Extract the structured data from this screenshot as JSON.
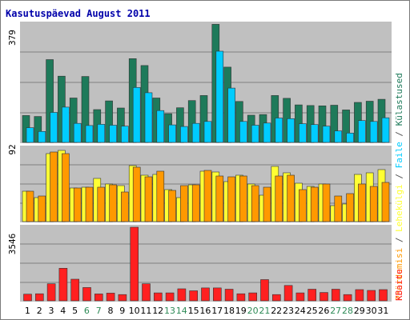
{
  "title": "Kasutuspäevad August 2011",
  "colors": {
    "background": "#ffffff",
    "panel": "#c0c0c0",
    "grid": "#7f7f7f",
    "title": "#0000aa",
    "weekday_label": "#000000",
    "weekend_label": "#2e8b57",
    "visits": "#1e7a5a",
    "pages": "#ffff33",
    "hits": "#ff9900",
    "bandwidth": "#ff2020",
    "files": "#00ccff"
  },
  "legend": {
    "visits": "Külastused",
    "files": "Faile",
    "pages": "Lehekülgi",
    "sep": " / ",
    "hits": "Pöördumisi",
    "bandwidth": "KBaite"
  },
  "axis_labels": {
    "top_max": "379",
    "mid_max": "92",
    "bottom_max": "3546"
  },
  "chart_data": [
    {
      "type": "bar",
      "panel": "top",
      "ylim": [
        0,
        379
      ],
      "categories": [
        "1",
        "2",
        "3",
        "4",
        "5",
        "6",
        "7",
        "8",
        "9",
        "10",
        "11",
        "12",
        "13",
        "14",
        "15",
        "16",
        "17",
        "18",
        "19",
        "20",
        "21",
        "22",
        "23",
        "24",
        "25",
        "26",
        "27",
        "28",
        "29",
        "30",
        "31"
      ],
      "weekend_days": [
        "6",
        "7",
        "13",
        "14",
        "20",
        "21",
        "27",
        "28"
      ],
      "series": [
        {
          "name": "Külastused",
          "values": [
            86,
            83,
            265,
            212,
            142,
            211,
            105,
            133,
            110,
            268,
            246,
            142,
            92,
            111,
            134,
            150,
            378,
            241,
            131,
            87,
            89,
            150,
            141,
            120,
            118,
            117,
            119,
            104,
            128,
            132,
            138
          ]
        },
        {
          "name": "Faile",
          "values": [
            47,
            35,
            96,
            113,
            61,
            54,
            58,
            55,
            52,
            176,
            159,
            102,
            56,
            51,
            61,
            67,
            292,
            174,
            67,
            55,
            62,
            78,
            76,
            60,
            57,
            52,
            37,
            30,
            70,
            67,
            79
          ]
        }
      ]
    },
    {
      "type": "bar",
      "panel": "middle",
      "ylim": [
        0,
        92
      ],
      "categories": [
        "1",
        "2",
        "3",
        "4",
        "5",
        "6",
        "7",
        "8",
        "9",
        "10",
        "11",
        "12",
        "13",
        "14",
        "15",
        "16",
        "17",
        "18",
        "19",
        "20",
        "21",
        "22",
        "23",
        "24",
        "25",
        "26",
        "27",
        "28",
        "29",
        "30",
        "31"
      ],
      "series": [
        {
          "name": "Lehekülgi",
          "values": [
            38,
            30,
            85,
            89,
            42,
            43,
            54,
            47,
            45,
            70,
            58,
            59,
            40,
            30,
            46,
            63,
            62,
            50,
            58,
            47,
            33,
            69,
            61,
            48,
            44,
            47,
            20,
            22,
            59,
            61,
            65
          ]
        },
        {
          "name": "Pöördumisi",
          "values": [
            38,
            32,
            87,
            85,
            42,
            43,
            43,
            46,
            37,
            68,
            56,
            63,
            39,
            45,
            46,
            64,
            57,
            56,
            57,
            45,
            43,
            57,
            58,
            40,
            43,
            47,
            32,
            35,
            47,
            44,
            49
          ]
        }
      ]
    },
    {
      "type": "bar",
      "panel": "bottom",
      "ylim": [
        0,
        3546
      ],
      "categories": [
        "1",
        "2",
        "3",
        "4",
        "5",
        "6",
        "7",
        "8",
        "9",
        "10",
        "11",
        "12",
        "13",
        "14",
        "15",
        "16",
        "17",
        "18",
        "19",
        "20",
        "21",
        "22",
        "23",
        "24",
        "25",
        "26",
        "27",
        "28",
        "29",
        "30",
        "31"
      ],
      "series": [
        {
          "name": "KBaite",
          "values": [
            320,
            340,
            820,
            1570,
            1040,
            640,
            330,
            370,
            300,
            3546,
            820,
            380,
            380,
            580,
            480,
            620,
            620,
            560,
            340,
            380,
            1020,
            300,
            740,
            380,
            560,
            400,
            560,
            300,
            540,
            500,
            540
          ]
        }
      ]
    }
  ]
}
